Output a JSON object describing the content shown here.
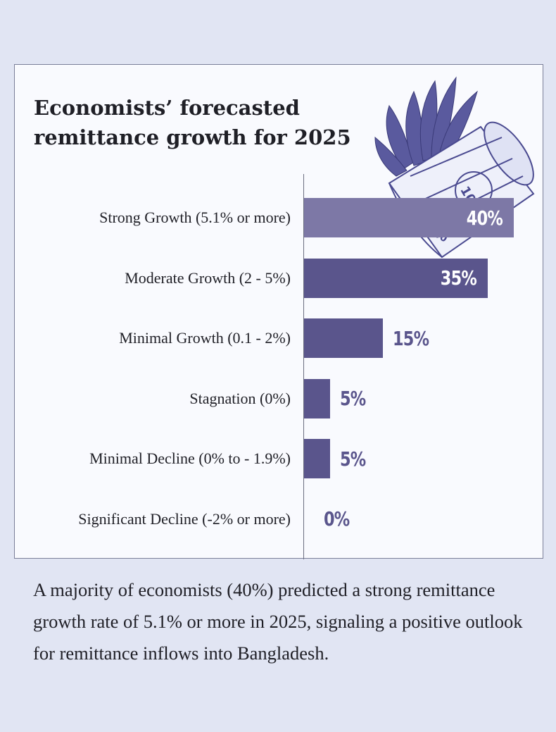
{
  "chart_data": {
    "type": "bar",
    "orientation": "horizontal",
    "title": "Economists’ forecasted remittance growth for 2025",
    "categories": [
      "Strong Growth (5.1% or more)",
      "Moderate Growth (2 - 5%)",
      "Minimal Growth (0.1 - 2%)",
      "Stagnation (0%)",
      "Minimal Decline (0% to - 1.9%)",
      "Significant Decline (-2% or more)"
    ],
    "values": [
      40,
      35,
      15,
      5,
      5,
      0
    ],
    "value_labels": [
      "40%",
      "35%",
      "15%",
      "5%",
      "5%",
      "0%"
    ],
    "xlim": [
      0,
      40
    ],
    "xlabel": "",
    "ylabel": "",
    "grid": false
  },
  "colors": {
    "background": "#e1e5f3",
    "card": "#f9fafe",
    "bar_highlight": "#7d78a6",
    "bar": "#5a558c",
    "value_text_outside": "#5a558c",
    "value_text_inside": "#ffffff"
  },
  "illustration": {
    "icon": "winged-dollar-roll-icon"
  },
  "caption": "A majority of economists (40%) predicted a strong remittance growth rate of 5.1% or more in 2025, signaling a positive outlook for remittance inflows into Bangladesh."
}
